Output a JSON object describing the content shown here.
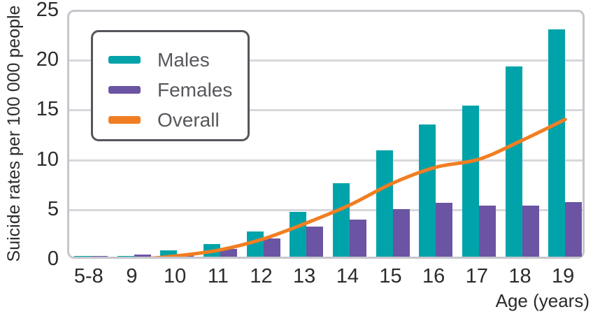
{
  "figure": {
    "y_axis_title": "Suicide rates per 100 000 people",
    "x_axis_title": "Age (years)",
    "y_ticks": [
      0,
      5,
      10,
      15,
      20,
      25
    ],
    "y_max": 25
  },
  "legend": {
    "position": "upper-left",
    "items": [
      {
        "label": "Males",
        "color": "#00a3a9",
        "swatch": "teal-bar-swatch"
      },
      {
        "label": "Females",
        "color": "#6b54a3",
        "swatch": "purple-bar-swatch"
      },
      {
        "label": "Overall",
        "color": "#f17e22",
        "swatch": "orange-line-swatch"
      }
    ]
  },
  "colors": {
    "males_bar": "#00a3a9",
    "females_bar": "#6b54a3",
    "overall_line": "#f17e22",
    "gridline": "#d8d8dc",
    "plot_border": "#c6c6cc",
    "text": "#2b2b2e",
    "legend_text": "#57585c"
  },
  "chart_data": {
    "type": "bar",
    "categories": [
      "5-8",
      "9",
      "10",
      "11",
      "12",
      "13",
      "14",
      "15",
      "16",
      "17",
      "18",
      "19"
    ],
    "series": [
      {
        "name": "Males",
        "type": "bar",
        "color": "#00a3a9",
        "values": [
          0.05,
          0.1,
          0.65,
          1.3,
          2.5,
          4.5,
          7.4,
          10.7,
          13.3,
          15.2,
          19.1,
          22.8
        ]
      },
      {
        "name": "Females",
        "type": "bar",
        "color": "#6b54a3",
        "values": [
          0.05,
          0.2,
          0.3,
          0.8,
          1.8,
          3.0,
          3.7,
          4.8,
          5.4,
          5.1,
          5.1,
          5.5
        ]
      },
      {
        "name": "Overall",
        "type": "line",
        "color": "#f17e22",
        "values": [
          0.05,
          0.15,
          0.5,
          1.1,
          2.2,
          3.8,
          5.6,
          7.8,
          9.4,
          10.2,
          12.1,
          14.2
        ]
      }
    ],
    "title": "",
    "xlabel": "Age (years)",
    "ylabel": "Suicide rates per 100 000 people",
    "ylim": [
      0,
      25
    ],
    "grid": true,
    "legend_position": "upper-left"
  }
}
